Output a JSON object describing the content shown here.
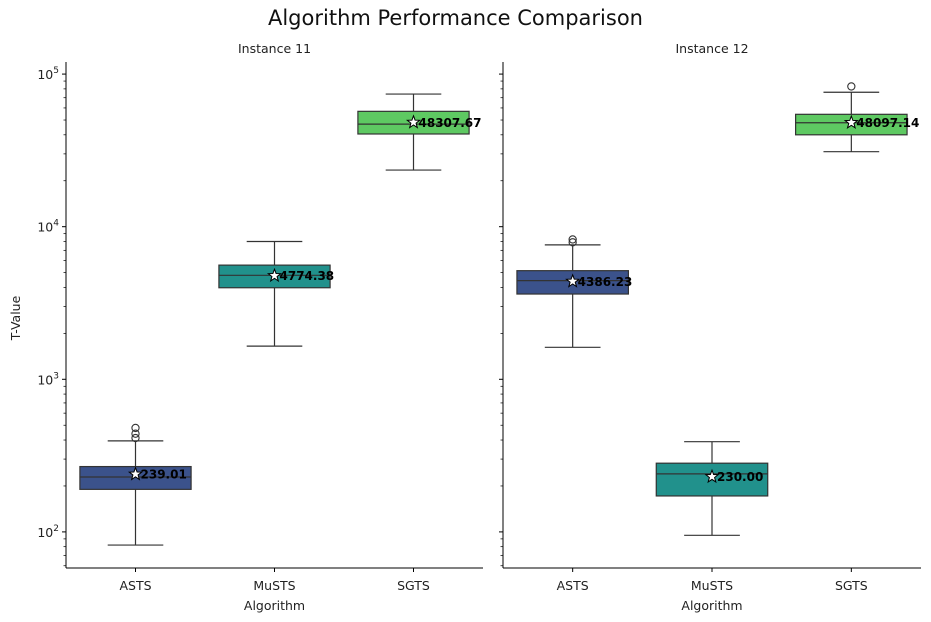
{
  "figure": {
    "title": "Algorithm Performance Comparison",
    "ylabel": "T-Value",
    "xlabel": "Algorithm"
  },
  "palette": {
    "ASTS": "#3b528b",
    "MuSTS": "#21918c",
    "SGTS": "#5ec962"
  },
  "chart_data": [
    {
      "type": "box",
      "title": "Instance 11",
      "xlabel": "Algorithm",
      "ylabel": "T-Value",
      "yscale": "log",
      "ylim": [
        58,
        120000
      ],
      "yticks": [
        "10^2",
        "10^3",
        "10^4",
        "10^5"
      ],
      "categories": [
        "ASTS",
        "MuSTS",
        "SGTS"
      ],
      "boxes": [
        {
          "name": "ASTS",
          "whisker_low": 82,
          "q1": 190,
          "median": 229,
          "q3": 268,
          "whisker_high": 395,
          "outliers": [
            412,
            440,
            480
          ],
          "mean": 239.01,
          "mean_label": "239.01"
        },
        {
          "name": "MuSTS",
          "whisker_low": 1650,
          "q1": 3980,
          "median": 4800,
          "q3": 5600,
          "whisker_high": 8000,
          "outliers": [],
          "mean": 4774.38,
          "mean_label": "4774.38"
        },
        {
          "name": "SGTS",
          "whisker_low": 23500,
          "q1": 40500,
          "median": 47000,
          "q3": 57000,
          "whisker_high": 74000,
          "outliers": [],
          "mean": 48307.67,
          "mean_label": "48307.67"
        }
      ],
      "grid": false
    },
    {
      "type": "box",
      "title": "Instance 12",
      "xlabel": "Algorithm",
      "ylabel": "",
      "yscale": "log",
      "ylim": [
        58,
        120000
      ],
      "yticks": [
        "10^2",
        "10^3",
        "10^4",
        "10^5"
      ],
      "categories": [
        "ASTS",
        "MuSTS",
        "SGTS"
      ],
      "boxes": [
        {
          "name": "ASTS",
          "whisker_low": 1620,
          "q1": 3620,
          "median": 4430,
          "q3": 5150,
          "whisker_high": 7600,
          "outliers": [
            7900,
            8250
          ],
          "mean": 4386.23,
          "mean_label": "4386.23"
        },
        {
          "name": "MuSTS",
          "whisker_low": 95,
          "q1": 172,
          "median": 240,
          "q3": 282,
          "whisker_high": 390,
          "outliers": [],
          "mean": 230.0,
          "mean_label": "230.00"
        },
        {
          "name": "SGTS",
          "whisker_low": 31000,
          "q1": 40000,
          "median": 48000,
          "q3": 54500,
          "whisker_high": 76000,
          "outliers": [
            83000
          ],
          "mean": 48097.14,
          "mean_label": "48097.14"
        }
      ],
      "grid": false
    }
  ]
}
